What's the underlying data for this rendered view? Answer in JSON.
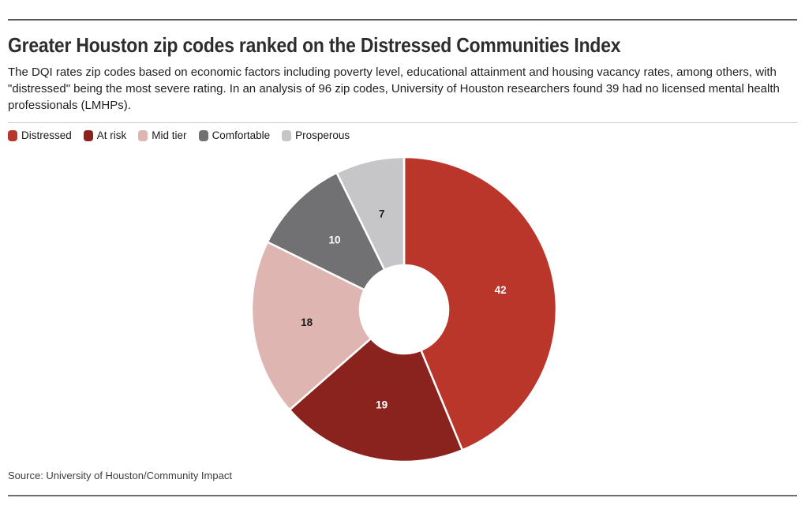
{
  "header": {
    "title": "Greater Houston zip codes ranked on the Distressed Communities Index",
    "subtitle": "The DQI rates zip codes based on economic factors including poverty level, educational attainment and housing vacancy rates, among others, with \"distressed\" being the most severe rating. In an analysis of 96 zip codes, University of Houston researchers found 39 had no licensed mental health professionals (LMHPs)."
  },
  "chart_data": {
    "type": "pie",
    "donut": true,
    "title": "Greater Houston zip codes ranked on the Distressed Communities Index",
    "total_zip_codes": 96,
    "start_angle_deg": 0,
    "direction": "clockwise",
    "inner_radius_ratio": 0.29,
    "legend_position": "top-left",
    "series": [
      {
        "name": "Distressed",
        "value": 42,
        "color": "#ba362b",
        "label_color": "#ffffff"
      },
      {
        "name": "At risk",
        "value": 19,
        "color": "#8a231d",
        "label_color": "#ffffff"
      },
      {
        "name": "Mid tier",
        "value": 18,
        "color": "#dfb5b1",
        "label_color": "#1d1d1d"
      },
      {
        "name": "Comfortable",
        "value": 10,
        "color": "#717073",
        "label_color": "#ffffff"
      },
      {
        "name": "Prosperous",
        "value": 7,
        "color": "#c6c5c7",
        "label_color": "#1d1d1d"
      }
    ]
  },
  "footer": {
    "source": "Source: University of Houston/Community Impact"
  }
}
